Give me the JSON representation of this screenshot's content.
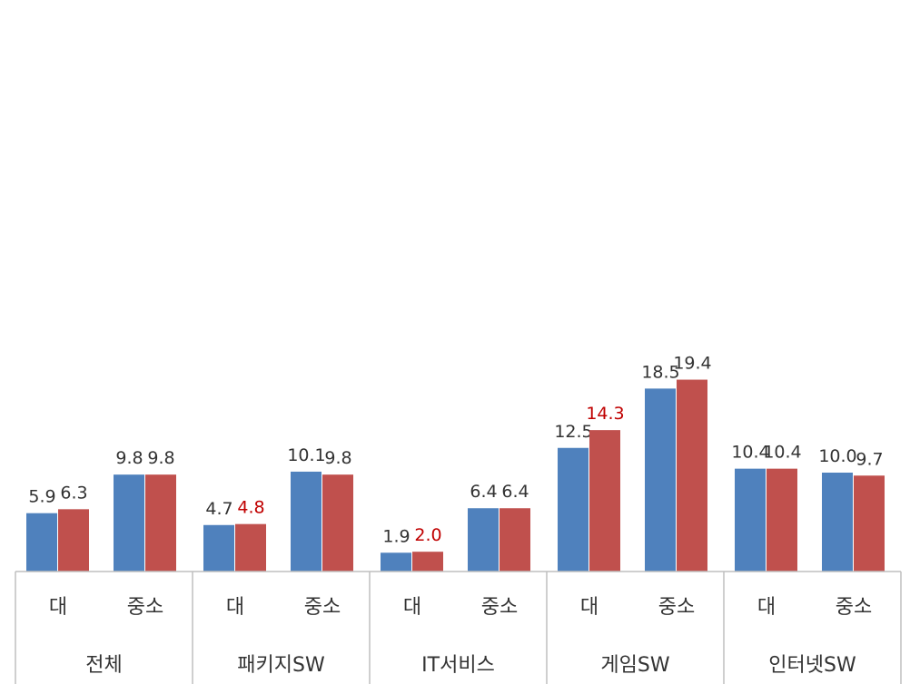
{
  "chart_data": {
    "type": "bar",
    "title": "",
    "xlabel": "",
    "ylabel": "",
    "ylim": [
      0,
      21
    ],
    "grid": false,
    "legend": "none",
    "groups": [
      {
        "name": "전체",
        "subcategories": [
          "대",
          "중소"
        ]
      },
      {
        "name": "패키지SW",
        "subcategories": [
          "대",
          "중소"
        ]
      },
      {
        "name": "IT서비스",
        "subcategories": [
          "대",
          "중소"
        ]
      },
      {
        "name": "게임SW",
        "subcategories": [
          "대",
          "중소"
        ]
      },
      {
        "name": "인터넷SW",
        "subcategories": [
          "대",
          "중소"
        ]
      }
    ],
    "series": [
      {
        "color": "#4f81bd",
        "values": [
          5.9,
          9.8,
          4.7,
          10.1,
          1.9,
          6.4,
          12.5,
          18.5,
          10.4,
          10.0
        ],
        "labels": [
          "5.9",
          "9.8",
          "4.7",
          "10.1",
          "1.9",
          "6.4",
          "12.5",
          "18.5",
          "10.4",
          "10.0"
        ],
        "label_colors": [
          "#333333",
          "#333333",
          "#333333",
          "#333333",
          "#333333",
          "#333333",
          "#333333",
          "#333333",
          "#333333",
          "#333333"
        ]
      },
      {
        "color": "#c0504d",
        "values": [
          6.3,
          9.8,
          4.8,
          9.8,
          2.0,
          6.4,
          14.3,
          19.4,
          10.4,
          9.7
        ],
        "labels": [
          "6.3",
          "9.8",
          "4.8",
          "9.8",
          "2.0",
          "6.4",
          "14.3",
          "19.4",
          "10.4",
          "9.7"
        ],
        "label_colors": [
          "#333333",
          "#333333",
          "#c00000",
          "#333333",
          "#c00000",
          "#333333",
          "#c00000",
          "#333333",
          "#333333",
          "#333333"
        ]
      }
    ]
  }
}
